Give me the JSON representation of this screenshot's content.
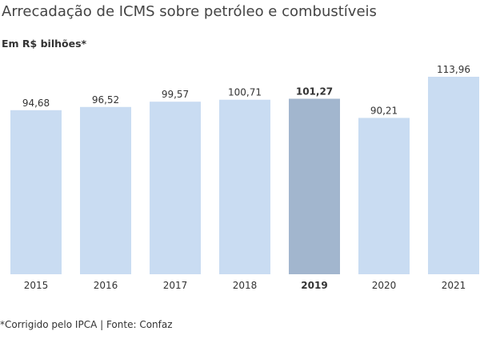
{
  "title": "Arrecadação de ICMS sobre petróleo e combustíveis",
  "subtitle": "Em R$ bilhões*",
  "footnote": "*Corrigido pelo IPCA | Fonte: Confaz",
  "colors": {
    "bar": "#c9dcf2",
    "highlight_bar": "#a2b6ce",
    "text": "#333333"
  },
  "chart_data": {
    "type": "bar",
    "categories": [
      "2015",
      "2016",
      "2017",
      "2018",
      "2019",
      "2020",
      "2021"
    ],
    "values": [
      94.68,
      96.52,
      99.57,
      100.71,
      101.27,
      90.21,
      113.96
    ],
    "value_labels": [
      "94,68",
      "96,52",
      "99,57",
      "100,71",
      "101,27",
      "90,21",
      "113,96"
    ],
    "highlight_category": "2019",
    "ylim": [
      0,
      113.96
    ],
    "grid": false,
    "legend": "none"
  }
}
